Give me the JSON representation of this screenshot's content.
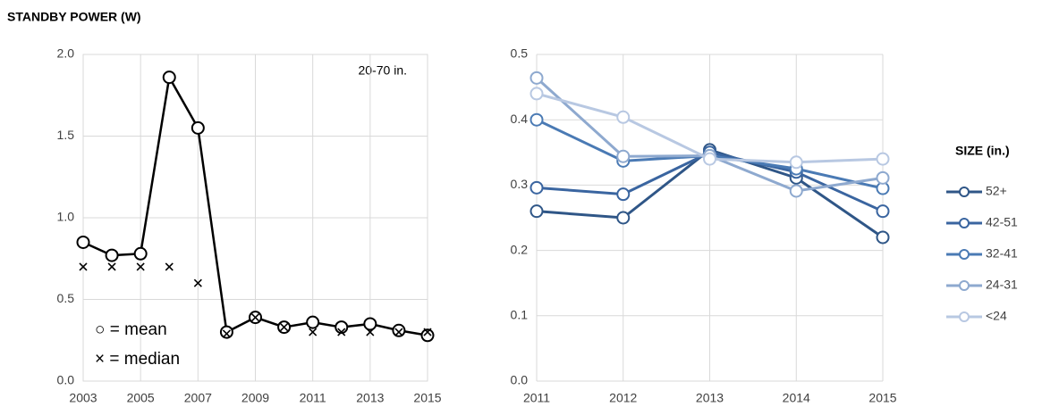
{
  "chart_data": [
    {
      "type": "line",
      "title": "STANDBY POWER (W)",
      "annotation": "20-70 in.",
      "x": [
        2003,
        2004,
        2005,
        2006,
        2007,
        2008,
        2009,
        2010,
        2011,
        2012,
        2013,
        2014,
        2015
      ],
      "xlim": [
        2003,
        2015
      ],
      "xticks": [
        2003,
        2005,
        2007,
        2009,
        2011,
        2013,
        2015
      ],
      "ylim": [
        0,
        2
      ],
      "yticks": [
        {
          "value": 0,
          "label": "0.0"
        },
        0.5,
        {
          "value": 1,
          "label": "1.0"
        },
        1.5,
        {
          "value": 2,
          "label": "2.0"
        }
      ],
      "grid": true,
      "frame": true,
      "legend": "lower left",
      "series": [
        {
          "name": "○ = mean",
          "color": "#000000",
          "marker": "circle",
          "line": true,
          "values": [
            0.85,
            0.77,
            0.78,
            1.86,
            1.55,
            0.3,
            0.39,
            0.33,
            0.36,
            0.33,
            0.35,
            0.31,
            0.28
          ]
        },
        {
          "name": "× = median",
          "color": "#000000",
          "marker": "x",
          "line": false,
          "values": [
            0.7,
            0.7,
            0.7,
            0.7,
            0.6,
            0.29,
            0.39,
            0.33,
            0.3,
            0.3,
            0.3,
            0.3,
            0.3
          ]
        }
      ]
    },
    {
      "type": "line",
      "legend_title": "SIZE (in.)",
      "x": [
        2011,
        2012,
        2013,
        2014,
        2015
      ],
      "xlim": [
        2011,
        2015
      ],
      "xticks": [
        2011,
        2012,
        2013,
        2014,
        2015
      ],
      "ylim": [
        0,
        0.5
      ],
      "yticks": [
        {
          "value": 0,
          "label": "0.0"
        },
        0.1,
        0.2,
        0.3,
        0.4,
        0.5
      ],
      "grid": true,
      "frame": false,
      "legend": "right",
      "series": [
        {
          "name": "52+",
          "color": "#2f5687",
          "marker": "circle",
          "line": true,
          "values": [
            0.26,
            0.25,
            0.354,
            0.311,
            0.22
          ]
        },
        {
          "name": "42-51",
          "color": "#3a65a0",
          "marker": "circle",
          "line": true,
          "values": [
            0.296,
            0.286,
            0.35,
            0.32,
            0.26
          ]
        },
        {
          "name": "32-41",
          "color": "#4a7ab4",
          "marker": "circle",
          "line": true,
          "values": [
            0.4,
            0.337,
            0.345,
            0.325,
            0.295
          ]
        },
        {
          "name": "24-31",
          "color": "#8ea9cf",
          "marker": "circle",
          "line": true,
          "values": [
            0.464,
            0.344,
            0.345,
            0.291,
            0.311
          ]
        },
        {
          "name": "<24",
          "color": "#b8c8e2",
          "marker": "circle",
          "line": true,
          "values": [
            0.44,
            0.404,
            0.34,
            0.335,
            0.34
          ]
        }
      ]
    }
  ]
}
